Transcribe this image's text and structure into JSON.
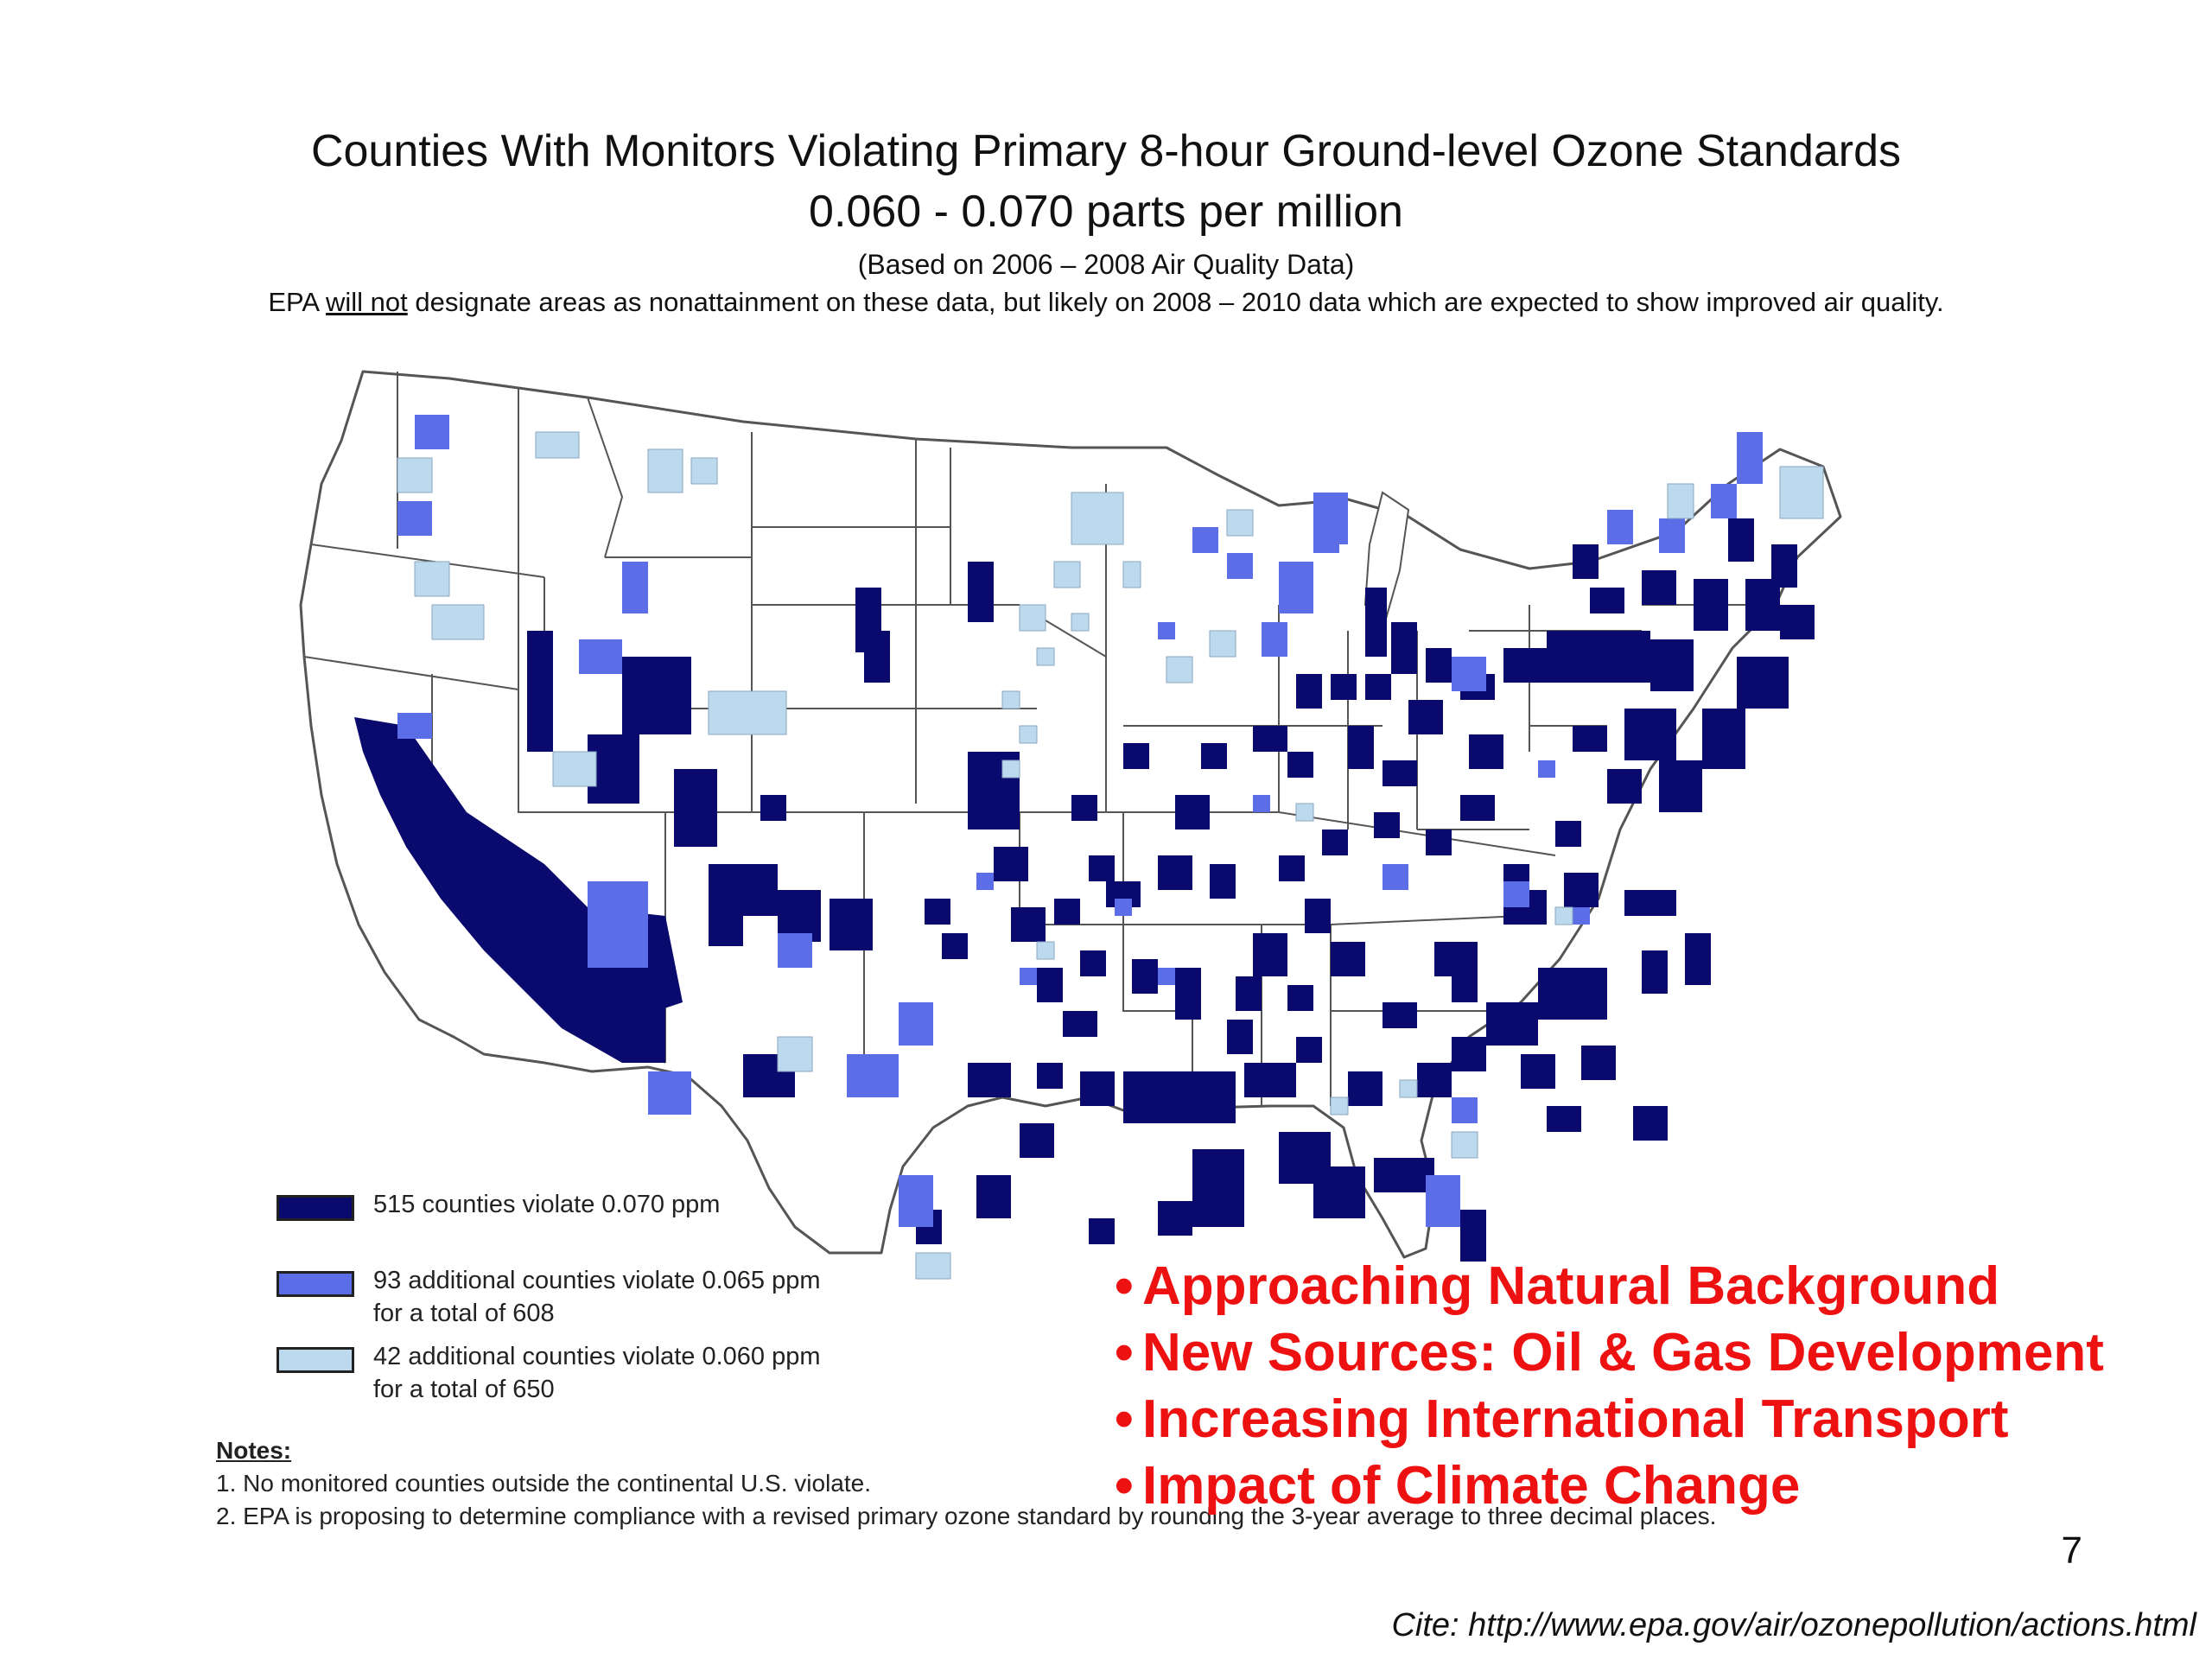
{
  "title": {
    "line1": "Counties With Monitors Violating Primary 8-hour Ground-level Ozone Standards",
    "line2": "0.060 -  0.070 parts per million",
    "line3": "(Based on 2006 – 2008 Air Quality Data)",
    "line4_pre": "EPA ",
    "line4_underlined": "will not",
    "line4_post": " designate areas as nonattainment on these data, but likely on 2008 – 2010 data which are expected to show improved air quality."
  },
  "legend": [
    {
      "line1": "515 counties violate 0.070 ppm",
      "line2": "",
      "color": "#0a0a6e"
    },
    {
      "line1": "93 additional counties violate 0.065 ppm",
      "line2": "for a total of 608",
      "color": "#5b6ee8"
    },
    {
      "line1": "42 additional counties violate 0.060 ppm",
      "line2": "for a total of 650",
      "color": "#bcd9ee"
    }
  ],
  "notes": {
    "heading": "Notes:",
    "items": [
      "1. No monitored counties outside the continental U.S. violate.",
      "2. EPA is proposing to determine compliance with a revised primary ozone standard by rounding the 3-year average to three decimal places."
    ]
  },
  "bullets": [
    "Approaching Natural Background",
    "New Sources: Oil & Gas Development",
    "Increasing International Transport",
    "Impact of Climate Change"
  ],
  "page_number": "7",
  "cite": "Cite: http://www.epa.gov/air/ozonepollution/actions.html",
  "colors": {
    "violate_070": "#0a0a6e",
    "violate_065": "#5b6ee8",
    "violate_060": "#bcd9ee",
    "bullet_text": "#ee1111",
    "state_border": "#555555"
  }
}
